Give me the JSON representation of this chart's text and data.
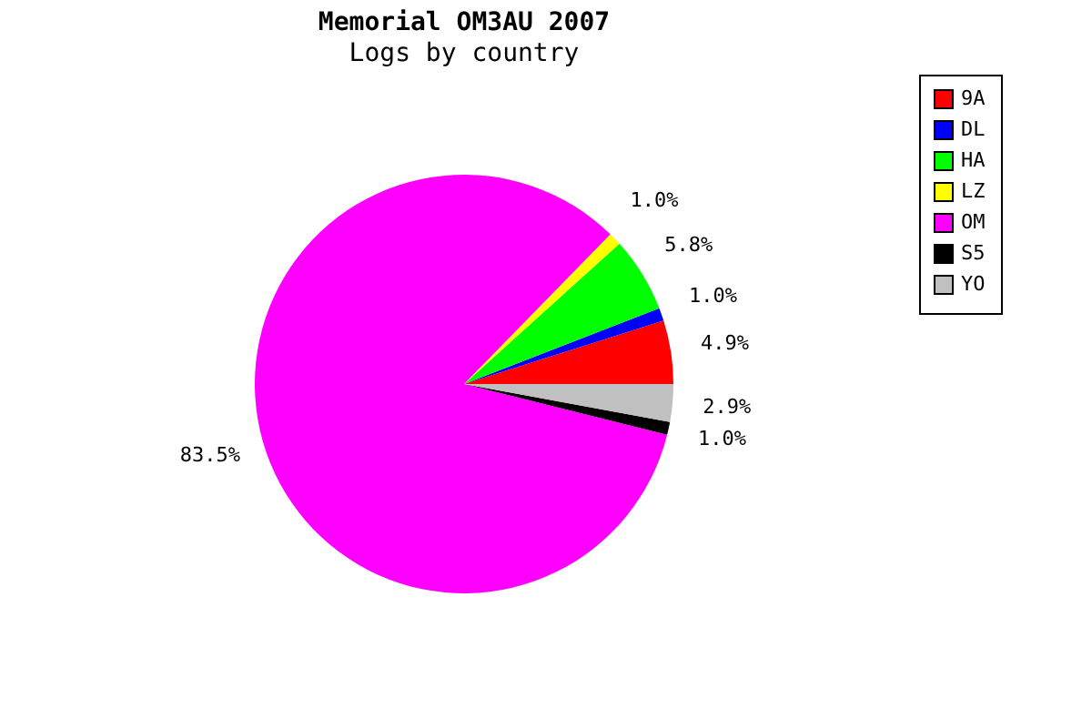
{
  "chart_data": {
    "type": "pie",
    "title": "Memorial OM3AU 2007",
    "subtitle": "Logs by country",
    "categories": [
      "9A",
      "DL",
      "HA",
      "LZ",
      "OM",
      "S5",
      "YO"
    ],
    "values": [
      4.9,
      1.0,
      5.8,
      1.0,
      83.5,
      1.0,
      2.9
    ],
    "value_labels": [
      "4.9%",
      "1.0%",
      "5.8%",
      "1.0%",
      "83.5%",
      "1.0%",
      "2.9%"
    ],
    "colors": [
      "#ff0000",
      "#0000ff",
      "#00ff00",
      "#ffff00",
      "#ff00ff",
      "#000000",
      "#c0c0c0"
    ],
    "legend": "top right"
  }
}
